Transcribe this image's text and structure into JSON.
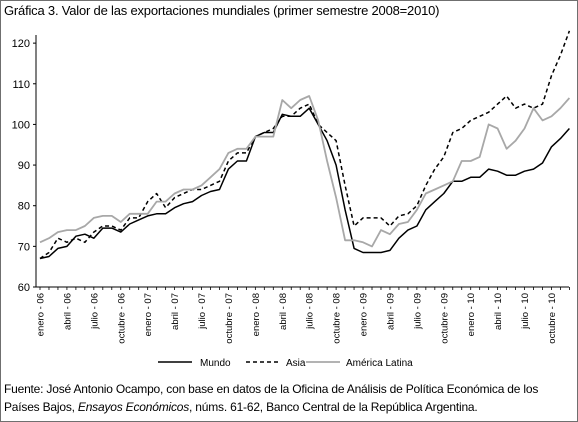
{
  "title": "Gráfica 3. Valor de las exportaciones mundiales (primer semestre 2008=2010)",
  "source": {
    "prefix": "Fuente: José Antonio Ocampo, con base en datos de la Oficina de Análisis de Política Económica de los Países Bajos, ",
    "italic": "Ensayos Económicos",
    "suffix": ", núms. 61-62, Banco Central de la República Argentina."
  },
  "chart_data": {
    "type": "line",
    "title": "Gráfica 3. Valor de las exportaciones mundiales (primer semestre 2008=2010)",
    "ylim": [
      60,
      122
    ],
    "yticks": [
      60,
      70,
      80,
      90,
      100,
      110,
      120
    ],
    "grid": false,
    "legend_position": "bottom",
    "x_tick_labels": [
      "enero - 06",
      "abril - 06",
      "julio - 06",
      "octubre - 06",
      "enero - 07",
      "abril - 07",
      "julio - 07",
      "octubre - 07",
      "enero - 08",
      "abril - 08",
      "julio - 08",
      "octubre - 08",
      "enero - 09",
      "abril - 09",
      "julio - 09",
      "octubre - 09",
      "enero - 10",
      "abril - 10",
      "julio - 10",
      "octubre - 10"
    ],
    "x": [
      "2006-01",
      "2006-02",
      "2006-03",
      "2006-04",
      "2006-05",
      "2006-06",
      "2006-07",
      "2006-08",
      "2006-09",
      "2006-10",
      "2006-11",
      "2006-12",
      "2007-01",
      "2007-02",
      "2007-03",
      "2007-04",
      "2007-05",
      "2007-06",
      "2007-07",
      "2007-08",
      "2007-09",
      "2007-10",
      "2007-11",
      "2007-12",
      "2008-01",
      "2008-02",
      "2008-03",
      "2008-04",
      "2008-05",
      "2008-06",
      "2008-07",
      "2008-08",
      "2008-09",
      "2008-10",
      "2008-11",
      "2008-12",
      "2009-01",
      "2009-02",
      "2009-03",
      "2009-04",
      "2009-05",
      "2009-06",
      "2009-07",
      "2009-08",
      "2009-09",
      "2009-10",
      "2009-11",
      "2009-12",
      "2010-01",
      "2010-02",
      "2010-03",
      "2010-04",
      "2010-05",
      "2010-06",
      "2010-07",
      "2010-08",
      "2010-09",
      "2010-10",
      "2010-11",
      "2010-12"
    ],
    "series": [
      {
        "name": "Mundo",
        "color": "#000000",
        "dash": "solid",
        "values": [
          67,
          67.5,
          69.5,
          70,
          72.5,
          73,
          72,
          74.5,
          74.5,
          73.5,
          75.5,
          76.5,
          77.5,
          78,
          78,
          79.5,
          80.5,
          81,
          82.5,
          83.5,
          84,
          89,
          91,
          91,
          97,
          98,
          98,
          102.5,
          102,
          102,
          104,
          100,
          96,
          90,
          79,
          69.5,
          68.5,
          68.5,
          68.5,
          69,
          72,
          74,
          75,
          79,
          81,
          83,
          86,
          86,
          87,
          87,
          89,
          88.5,
          87.5,
          87.5,
          88.5,
          89,
          90.5,
          94.5,
          96.5,
          99
        ]
      },
      {
        "name": "Asia",
        "color": "#000000",
        "dash": "dashed",
        "values": [
          67,
          68.5,
          72,
          71,
          72,
          71,
          73.5,
          75,
          75,
          74,
          77,
          77,
          81,
          83,
          79.5,
          82,
          83,
          84,
          84,
          85,
          86,
          91,
          93,
          93,
          97,
          98,
          99,
          102,
          102,
          104,
          105,
          100,
          98,
          96,
          85,
          75,
          77,
          77,
          77,
          75,
          77.5,
          78,
          80,
          85,
          89,
          92,
          98,
          99,
          101,
          102,
          103,
          105,
          107,
          104,
          105,
          104,
          105,
          112,
          117,
          123
        ]
      },
      {
        "name": "América Latina",
        "color": "#a8a8a8",
        "dash": "solid",
        "values": [
          71,
          72,
          73.5,
          74,
          74,
          75,
          77,
          77.5,
          77.5,
          76,
          78,
          78,
          78,
          81,
          81,
          83,
          84,
          84,
          85,
          87,
          89,
          93,
          94,
          94,
          97,
          97,
          97,
          106,
          104,
          106,
          107,
          101,
          91,
          82,
          71.5,
          71.5,
          71,
          70,
          74,
          73,
          75.5,
          76,
          79,
          83,
          84,
          85,
          86,
          91,
          91,
          92,
          100,
          99,
          94,
          96,
          99,
          104,
          101,
          102,
          104,
          106.5
        ]
      }
    ]
  }
}
